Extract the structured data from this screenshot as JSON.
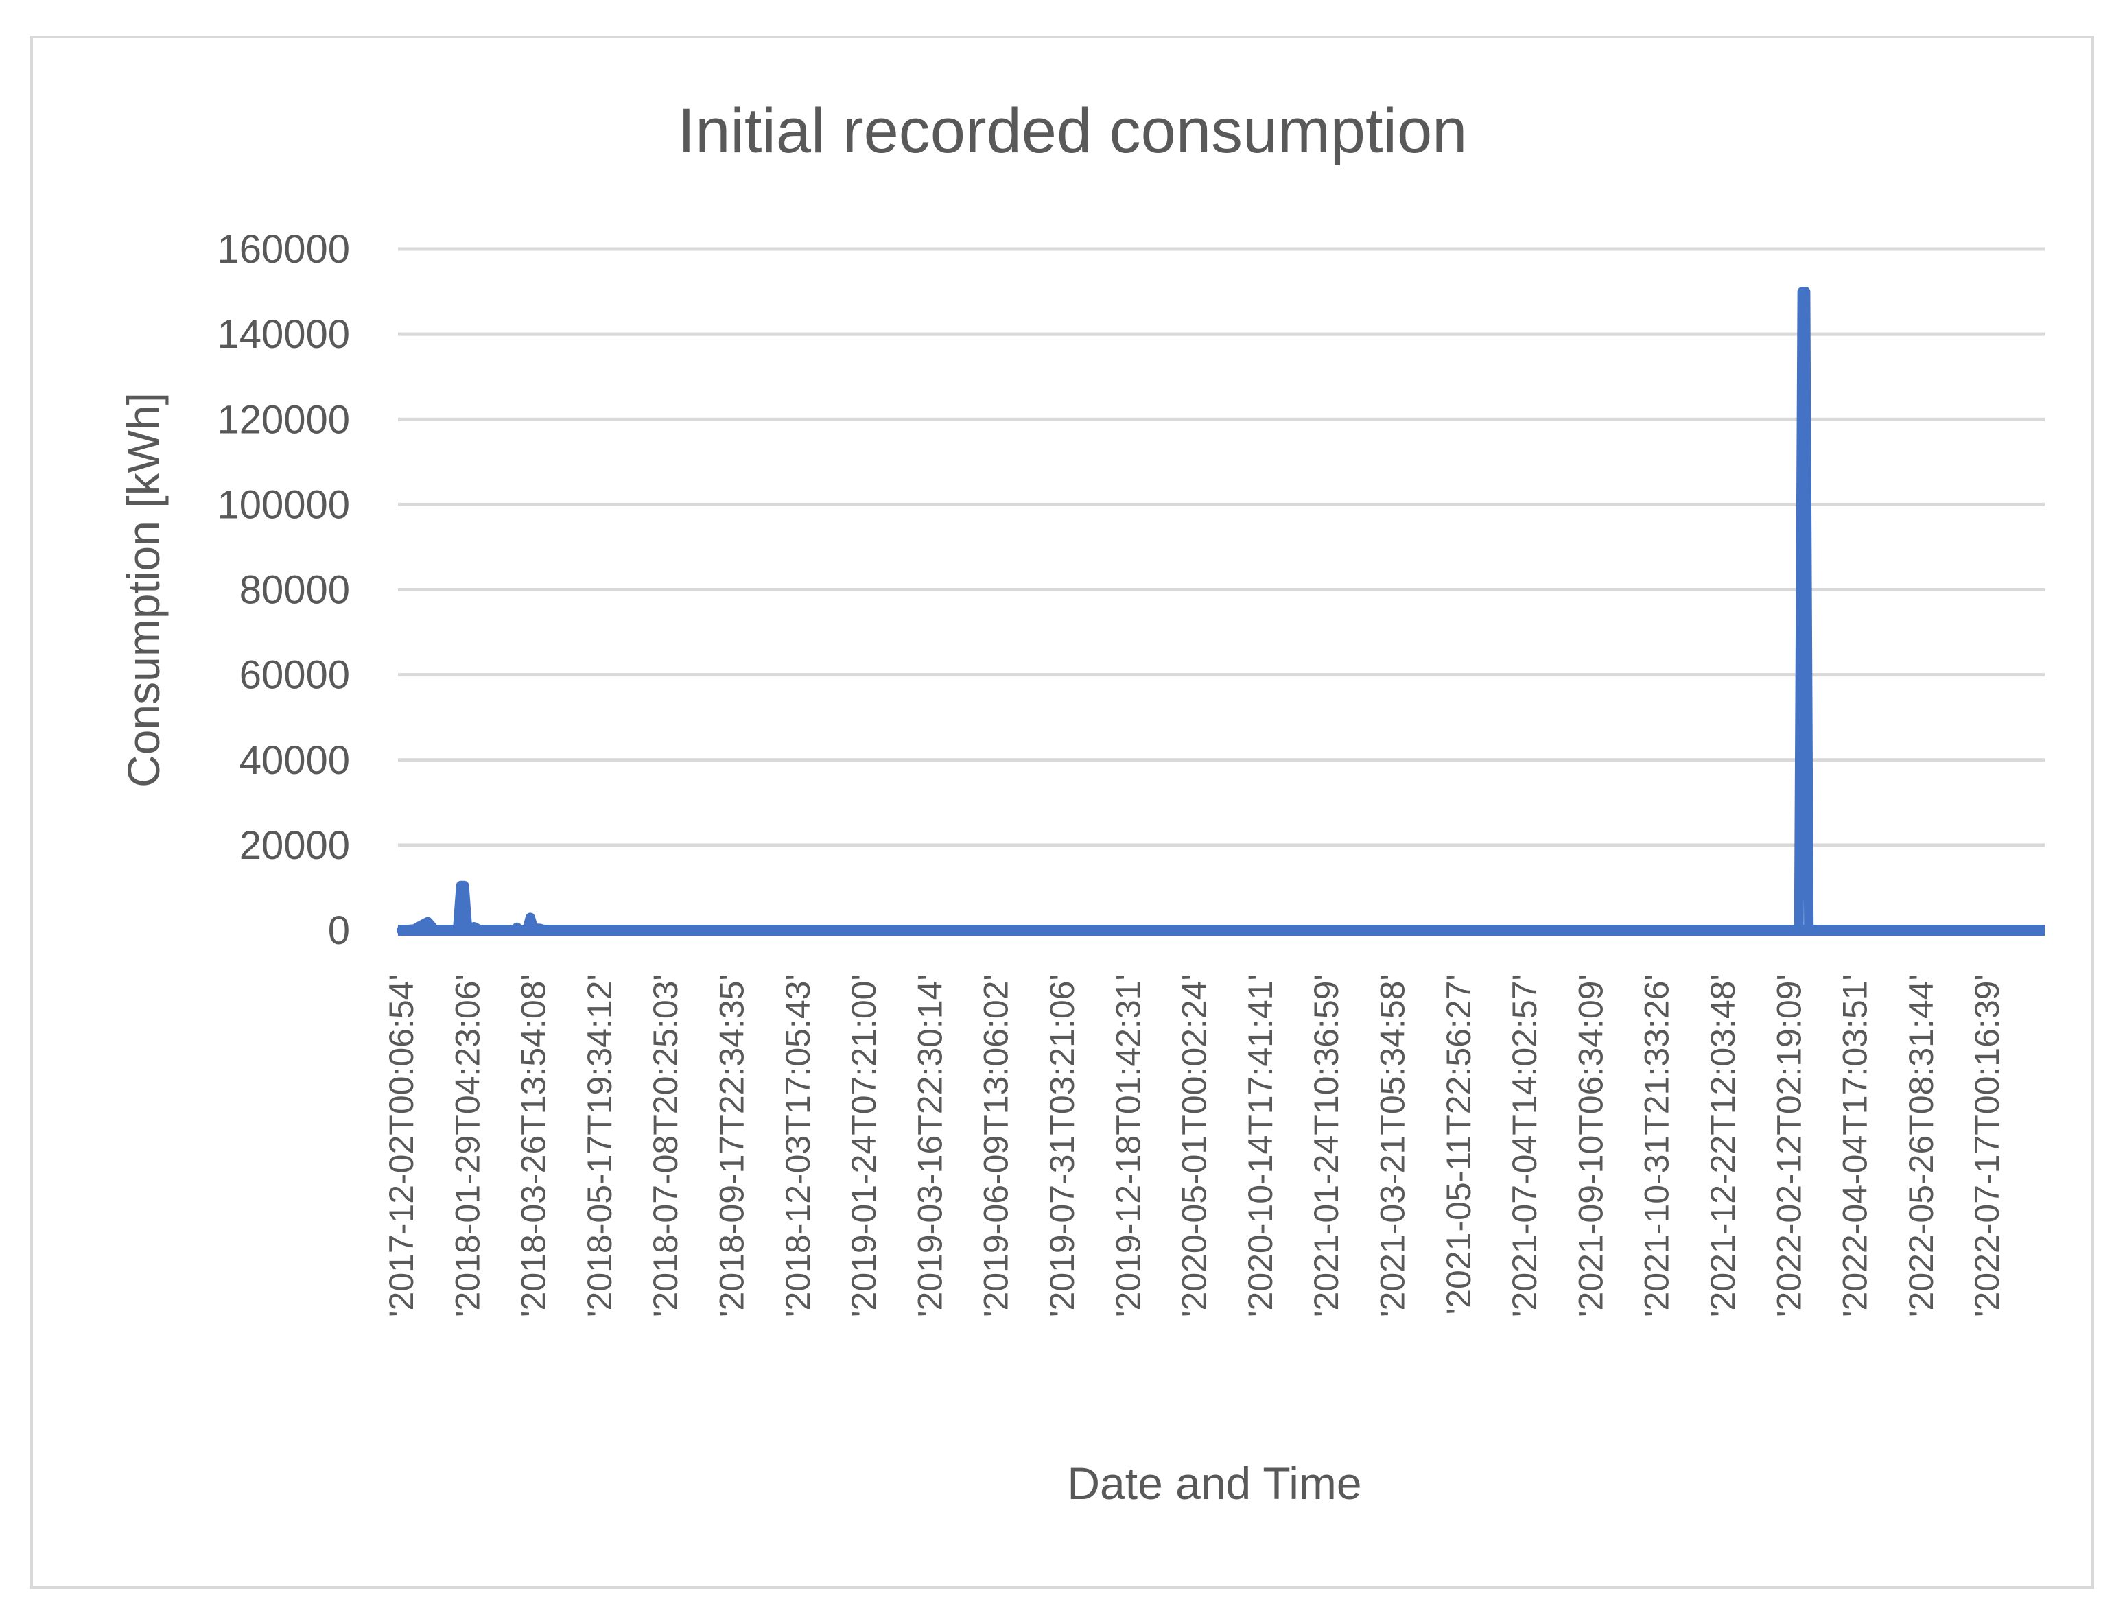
{
  "chart_data": {
    "type": "line",
    "title": "Initial recorded consumption",
    "xlabel": "Date and Time",
    "ylabel": "Consumption [kWh]",
    "ylim": [
      0,
      160000
    ],
    "yticks": [
      0,
      20000,
      40000,
      60000,
      80000,
      100000,
      120000,
      140000,
      160000
    ],
    "grid": true,
    "legend": "none",
    "series_color": "#4472c4",
    "categories": [
      "'2017-12-02T00:06:54'",
      "'2018-01-29T04:23:06'",
      "'2018-03-26T13:54:08'",
      "'2018-05-17T19:34:12'",
      "'2018-07-08T20:25:03'",
      "'2018-09-17T22:34:35'",
      "'2018-12-03T17:05:43'",
      "'2019-01-24T07:21:00'",
      "'2019-03-16T22:30:14'",
      "'2019-06-09T13:06:02'",
      "'2019-07-31T03:21:06'",
      "'2019-12-18T01:42:31'",
      "'2020-05-01T00:02:24'",
      "'2020-10-14T17:41:41'",
      "'2021-01-24T10:36:59'",
      "'2021-03-21T05:34:58'",
      "'2021-05-11T22:56:27'",
      "'2021-07-04T14:02:57'",
      "'2021-09-10T06:34:09'",
      "'2021-10-31T21:33:26'",
      "'2021-12-22T12:03:48'",
      "'2022-02-12T02:19:09'",
      "'2022-04-04T17:03:51'",
      "'2022-05-26T08:31:44'",
      "'2022-07-17T00:16:39'"
    ],
    "series": [
      {
        "points": [
          [
            0,
            0
          ],
          [
            0.2,
            300
          ],
          [
            0.3,
            1200
          ],
          [
            0.4,
            2000
          ],
          [
            0.5,
            200
          ],
          [
            0.85,
            0
          ],
          [
            0.9,
            10500
          ],
          [
            0.95,
            10500
          ],
          [
            1.0,
            300
          ],
          [
            1.1,
            800
          ],
          [
            1.2,
            0
          ],
          [
            1.7,
            0
          ],
          [
            1.75,
            700
          ],
          [
            1.8,
            0
          ],
          [
            1.9,
            0
          ],
          [
            1.95,
            3000
          ],
          [
            2.0,
            500
          ],
          [
            2.1,
            400
          ],
          [
            2.2,
            0
          ],
          [
            21.15,
            0
          ],
          [
            21.2,
            150000
          ],
          [
            21.25,
            150000
          ],
          [
            21.3,
            0
          ],
          [
            24.7,
            0
          ]
        ]
      }
    ]
  }
}
